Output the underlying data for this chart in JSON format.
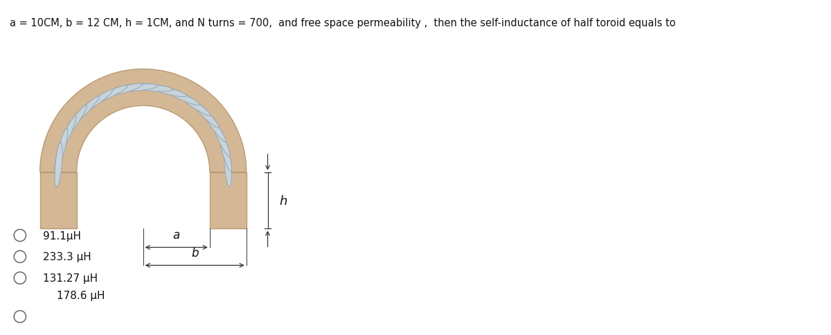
{
  "title": "a = 10CM, b = 12 CM, h = 1CM, and N turns = 700,  and free space permeability ,  then the self-inductance of half toroid equals to",
  "title_fontsize": 10.5,
  "options": [
    {
      "text": "91.1μH",
      "radio": true,
      "indent": false
    },
    {
      "text": "233.3 μH",
      "radio": true,
      "indent": false
    },
    {
      "text": "131.27 μH",
      "radio": true,
      "indent": false
    },
    {
      "text": "178.6 μH",
      "radio": false,
      "indent": true
    },
    {
      "text": "",
      "radio": true,
      "indent": false
    }
  ],
  "bg_color": "#ffffff",
  "toroid_color": "#d4b896",
  "toroid_edge": "#b89a72",
  "coil_fill": "#c8d4dc",
  "coil_edge": "#9aa8b0",
  "label_color": "#111111",
  "dim_color": "#333333"
}
